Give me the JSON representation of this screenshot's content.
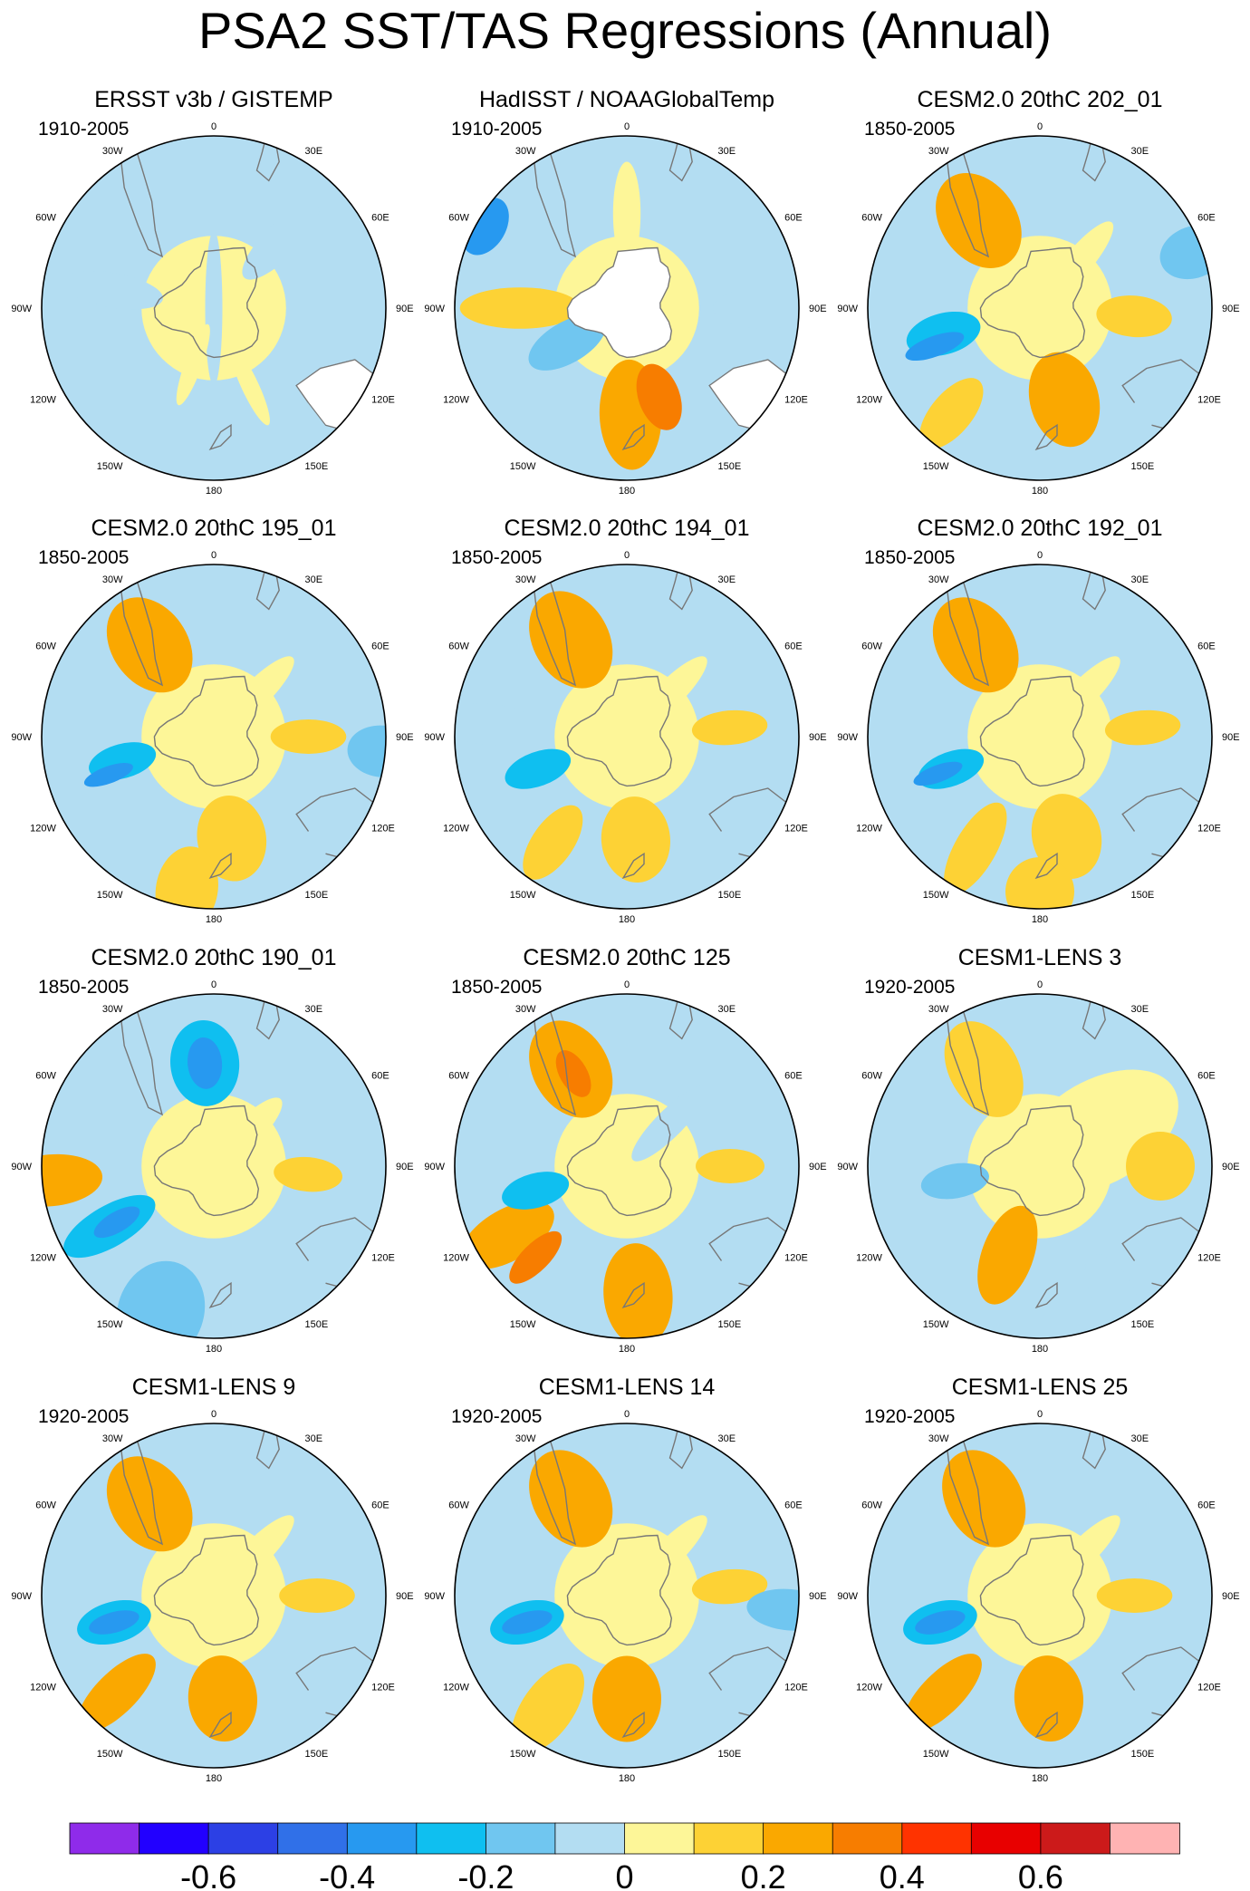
{
  "title": "PSA2 SST/TAS Regressions (Annual)",
  "longitude_labels": [
    "0",
    "30E",
    "60E",
    "90E",
    "120E",
    "150E",
    "180",
    "150W",
    "120W",
    "90W",
    "60W",
    "30W"
  ],
  "colorbar": {
    "colors": [
      "#8f2bea",
      "#2200ff",
      "#2c40e5",
      "#3070e8",
      "#2799f0",
      "#0fbff0",
      "#70c6f0",
      "#b3ddf2",
      "#fdf698",
      "#fdd235",
      "#faa800",
      "#f77d00",
      "#ff3300",
      "#e80000",
      "#cc1a1a",
      "#ffb3b3"
    ],
    "ticks": [
      {
        "value": -0.6,
        "label": "-0.6"
      },
      {
        "value": -0.4,
        "label": "-0.4"
      },
      {
        "value": -0.2,
        "label": "-0.2"
      },
      {
        "value": 0,
        "label": "0"
      },
      {
        "value": 0.2,
        "label": "0.2"
      },
      {
        "value": 0.4,
        "label": "0.4"
      },
      {
        "value": 0.6,
        "label": "0.6"
      }
    ]
  },
  "chart_data": {
    "type": "heatmap",
    "title": "PSA2 SST/TAS Regressions (Annual)",
    "projection": "south-polar-stereographic",
    "units_range": [
      -0.7,
      0.7
    ],
    "contour_levels": [
      -0.7,
      -0.6,
      -0.5,
      -0.4,
      -0.3,
      -0.2,
      -0.1,
      0,
      0.1,
      0.2,
      0.3,
      0.4,
      0.5,
      0.6,
      0.7
    ],
    "panels": [
      {
        "name": "ERSST v3b / GISTEMP",
        "period": "1910-2005",
        "missing": true,
        "blobs": []
      },
      {
        "name": "HadISST / NOAAGlobalTemp",
        "period": "1910-2005",
        "missing": true,
        "antarctic_mask": true,
        "blobs": []
      },
      {
        "name": "CESM2.0 20thC 202_01",
        "period": "1850-2005",
        "blobs": []
      },
      {
        "name": "CESM2.0 20thC 195_01",
        "period": "1850-2005",
        "blobs": []
      },
      {
        "name": "CESM2.0 20thC 194_01",
        "period": "1850-2005",
        "blobs": []
      },
      {
        "name": "CESM2.0 20thC 192_01",
        "period": "1850-2005",
        "blobs": []
      },
      {
        "name": "CESM2.0 20thC 190_01",
        "period": "1850-2005",
        "blobs": []
      },
      {
        "name": "CESM2.0 20thC 125",
        "period": "1850-2005",
        "blobs": []
      },
      {
        "name": "CESM1-LENS 3",
        "period": "1920-2005",
        "blobs": []
      },
      {
        "name": "CESM1-LENS 9",
        "period": "1920-2005",
        "blobs": []
      },
      {
        "name": "CESM1-LENS 14",
        "period": "1920-2005",
        "blobs": []
      },
      {
        "name": "CESM1-LENS 25",
        "period": "1920-2005",
        "blobs": []
      }
    ],
    "patterns": {
      "ERSST v3b / GISTEMP": [
        [
          0,
          0,
          0.05,
          0.45,
          -0.05
        ],
        [
          280,
          0.6,
          0.1,
          0.3,
          -0.1
        ],
        [
          45,
          0.55,
          0.1,
          0.3,
          -0.08
        ],
        [
          200,
          0.35,
          0.05,
          0.25,
          0.05
        ],
        [
          155,
          0.5,
          0.05,
          0.25,
          0.05
        ]
      ],
      "HadISST / NOAAGlobalTemp": [
        [
          178,
          0.62,
          0.18,
          0.32,
          0.25
        ],
        [
          160,
          0.55,
          0.12,
          0.2,
          0.35
        ],
        [
          270,
          0.62,
          0.12,
          0.35,
          0.1
        ],
        [
          240,
          0.4,
          0.12,
          0.25,
          -0.15
        ],
        [
          0,
          0.55,
          0.08,
          0.3,
          0.08
        ],
        [
          300,
          0.95,
          0.18,
          0.12,
          -0.4
        ],
        [
          90,
          0.8,
          0.12,
          0.3,
          -0.06
        ]
      ],
      "CESM2.0 20thC 202_01": [
        [
          325,
          0.62,
          0.22,
          0.3,
          0.25
        ],
        [
          95,
          0.55,
          0.12,
          0.22,
          0.15
        ],
        [
          255,
          0.58,
          0.12,
          0.22,
          -0.3
        ],
        [
          250,
          0.65,
          0.06,
          0.18,
          -0.35
        ],
        [
          165,
          0.55,
          0.2,
          0.28,
          0.2
        ],
        [
          220,
          0.8,
          0.12,
          0.25,
          0.12
        ],
        [
          70,
          0.95,
          0.15,
          0.2,
          -0.15
        ],
        [
          40,
          0.35,
          0.08,
          0.3,
          0.06
        ]
      ],
      "CESM2.0 20thC 195_01": [
        [
          325,
          0.65,
          0.22,
          0.3,
          0.22
        ],
        [
          90,
          0.55,
          0.1,
          0.22,
          0.15
        ],
        [
          255,
          0.55,
          0.1,
          0.2,
          -0.25
        ],
        [
          250,
          0.65,
          0.05,
          0.15,
          -0.32
        ],
        [
          170,
          0.6,
          0.2,
          0.25,
          0.18
        ],
        [
          190,
          0.9,
          0.18,
          0.25,
          0.16
        ],
        [
          95,
          0.98,
          0.15,
          0.2,
          -0.12
        ],
        [
          45,
          0.35,
          0.08,
          0.3,
          0.06
        ]
      ],
      "CESM2.0 20thC 194_01": [
        [
          330,
          0.65,
          0.22,
          0.3,
          0.22
        ],
        [
          85,
          0.6,
          0.1,
          0.22,
          0.18
        ],
        [
          250,
          0.55,
          0.1,
          0.2,
          -0.22
        ],
        [
          175,
          0.6,
          0.2,
          0.25,
          0.18
        ],
        [
          215,
          0.75,
          0.12,
          0.25,
          0.12
        ],
        [
          275,
          0.8,
          0.12,
          0.3,
          -0.1
        ],
        [
          45,
          0.35,
          0.08,
          0.3,
          0.06
        ]
      ],
      "CESM2.0 20thC 192_01": [
        [
          325,
          0.65,
          0.22,
          0.3,
          0.24
        ],
        [
          85,
          0.6,
          0.1,
          0.22,
          0.18
        ],
        [
          250,
          0.55,
          0.1,
          0.2,
          -0.28
        ],
        [
          250,
          0.63,
          0.05,
          0.15,
          -0.35
        ],
        [
          165,
          0.6,
          0.2,
          0.25,
          0.18
        ],
        [
          210,
          0.75,
          0.12,
          0.3,
          0.18
        ],
        [
          180,
          0.9,
          0.2,
          0.2,
          0.16
        ],
        [
          45,
          0.35,
          0.08,
          0.3,
          0.06
        ]
      ],
      "CESM2.0 20thC 190_01": [
        [
          355,
          0.6,
          0.2,
          0.25,
          -0.25
        ],
        [
          355,
          0.6,
          0.1,
          0.15,
          -0.35
        ],
        [
          240,
          0.7,
          0.12,
          0.3,
          -0.25
        ],
        [
          240,
          0.65,
          0.06,
          0.15,
          -0.32
        ],
        [
          265,
          0.95,
          0.15,
          0.3,
          0.2
        ],
        [
          200,
          0.9,
          0.25,
          0.3,
          -0.12
        ],
        [
          95,
          0.55,
          0.1,
          0.2,
          0.12
        ],
        [
          45,
          0.3,
          0.08,
          0.25,
          0.05
        ]
      ],
      "CESM2.0 20thC 125": [
        [
          330,
          0.65,
          0.22,
          0.3,
          0.25
        ],
        [
          330,
          0.62,
          0.08,
          0.15,
          0.32
        ],
        [
          240,
          0.8,
          0.15,
          0.3,
          0.22
        ],
        [
          225,
          0.75,
          0.08,
          0.2,
          0.3
        ],
        [
          255,
          0.55,
          0.1,
          0.2,
          -0.22
        ],
        [
          175,
          0.75,
          0.2,
          0.3,
          0.2
        ],
        [
          90,
          0.6,
          0.1,
          0.2,
          0.12
        ],
        [
          45,
          0.35,
          0.08,
          0.3,
          -0.05
        ]
      ],
      "CESM1-LENS 3": [
        [
          330,
          0.65,
          0.2,
          0.3,
          0.18
        ],
        [
          200,
          0.55,
          0.15,
          0.3,
          0.2
        ],
        [
          260,
          0.5,
          0.1,
          0.2,
          -0.12
        ],
        [
          60,
          0.4,
          0.3,
          0.5,
          0.08
        ],
        [
          150,
          0.85,
          0.12,
          0.25,
          -0.08
        ],
        [
          90,
          0.7,
          0.2,
          0.2,
          0.1
        ]
      ],
      "CESM1-LENS 9": [
        [
          325,
          0.65,
          0.22,
          0.3,
          0.25
        ],
        [
          255,
          0.6,
          0.12,
          0.22,
          -0.3
        ],
        [
          255,
          0.6,
          0.06,
          0.15,
          -0.35
        ],
        [
          175,
          0.6,
          0.2,
          0.25,
          0.22
        ],
        [
          225,
          0.8,
          0.12,
          0.3,
          0.2
        ],
        [
          90,
          0.6,
          0.1,
          0.22,
          0.15
        ],
        [
          45,
          0.35,
          0.08,
          0.3,
          0.06
        ]
      ],
      "CESM1-LENS 14": [
        [
          330,
          0.65,
          0.22,
          0.3,
          0.22
        ],
        [
          255,
          0.6,
          0.12,
          0.22,
          -0.3
        ],
        [
          255,
          0.6,
          0.06,
          0.15,
          -0.35
        ],
        [
          180,
          0.6,
          0.2,
          0.25,
          0.22
        ],
        [
          215,
          0.8,
          0.15,
          0.3,
          0.18
        ],
        [
          85,
          0.6,
          0.1,
          0.22,
          0.16
        ],
        [
          95,
          0.95,
          0.12,
          0.25,
          -0.12
        ],
        [
          45,
          0.35,
          0.08,
          0.3,
          0.06
        ]
      ],
      "CESM1-LENS 25": [
        [
          330,
          0.65,
          0.22,
          0.3,
          0.24
        ],
        [
          255,
          0.6,
          0.12,
          0.22,
          -0.3
        ],
        [
          255,
          0.6,
          0.06,
          0.15,
          -0.4
        ],
        [
          175,
          0.6,
          0.2,
          0.25,
          0.22
        ],
        [
          225,
          0.8,
          0.12,
          0.3,
          0.2
        ],
        [
          90,
          0.55,
          0.1,
          0.22,
          0.18
        ],
        [
          45,
          0.35,
          0.08,
          0.3,
          0.06
        ]
      ]
    }
  }
}
